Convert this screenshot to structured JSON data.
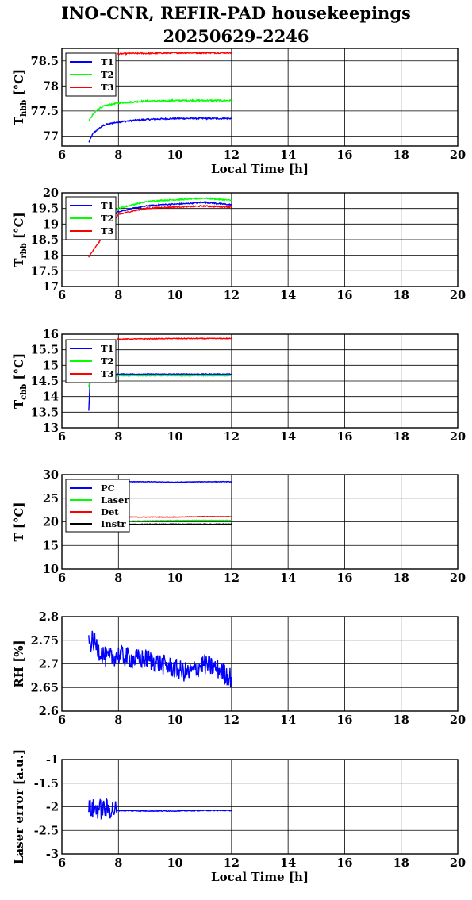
{
  "title": {
    "line1": "INO-CNR, REFIR-PAD housekeepings",
    "line2": "20250629-2246"
  },
  "colors": {
    "blue": "#0000ff",
    "green": "#00ff00",
    "red": "#ff0000",
    "black": "#000000",
    "grid": "#000000"
  },
  "chart_data": [
    {
      "type": "line",
      "ylabel_main": "T",
      "ylabel_sub": "hbb",
      "ylabel_unit": " [°C]",
      "xlabel": "Local Time [h]",
      "xlim": [
        6,
        20
      ],
      "ylim": [
        76.8,
        78.75
      ],
      "xticks": [
        6,
        8,
        10,
        12,
        14,
        16,
        18,
        20
      ],
      "yticks": [
        77,
        77.5,
        78,
        78.5
      ],
      "ytick_labels": [
        "77",
        "77.5",
        "78",
        "78.5"
      ],
      "grid": true,
      "legend_position": "top-left",
      "series": [
        {
          "name": "T1",
          "color": "#0000ff",
          "x": [
            6.95,
            7.1,
            7.3,
            7.5,
            7.8,
            8.0,
            8.5,
            9.0,
            9.5,
            10.0,
            10.5,
            11.0,
            11.5,
            12.0
          ],
          "values": [
            76.87,
            77.05,
            77.15,
            77.22,
            77.26,
            77.28,
            77.31,
            77.33,
            77.34,
            77.35,
            77.35,
            77.35,
            77.35,
            77.35
          ],
          "noise": 0.015
        },
        {
          "name": "T2",
          "color": "#00ff00",
          "x": [
            6.95,
            7.1,
            7.3,
            7.5,
            7.8,
            8.0,
            8.5,
            9.0,
            9.5,
            10.0,
            10.5,
            11.0,
            11.5,
            12.0
          ],
          "values": [
            77.3,
            77.43,
            77.55,
            77.6,
            77.64,
            77.66,
            77.68,
            77.7,
            77.7,
            77.71,
            77.71,
            77.71,
            77.71,
            77.71
          ],
          "noise": 0.015
        },
        {
          "name": "T3",
          "color": "#ff0000",
          "x": [
            7.95,
            8.5,
            9.0,
            10.0,
            11.0,
            12.0
          ],
          "values": [
            78.64,
            78.65,
            78.65,
            78.66,
            78.66,
            78.66
          ],
          "noise": 0.012
        }
      ]
    },
    {
      "type": "line",
      "ylabel_main": "T",
      "ylabel_sub": "rbb",
      "ylabel_unit": " [°C]",
      "xlabel": "",
      "xlim": [
        6,
        20
      ],
      "ylim": [
        17,
        20
      ],
      "xticks": [
        6,
        8,
        10,
        12,
        14,
        16,
        18,
        20
      ],
      "yticks": [
        17,
        17.5,
        18,
        18.5,
        19,
        19.5,
        20
      ],
      "ytick_labels": [
        "17",
        "17.5",
        "18",
        "18.5",
        "19",
        "19.5",
        "20"
      ],
      "grid": true,
      "legend_position": "top-left",
      "series": [
        {
          "name": "T1",
          "color": "#0000ff",
          "x": [
            6.95,
            8.0,
            8.5,
            9.0,
            9.5,
            10.0,
            10.5,
            11.0,
            11.5,
            12.0
          ],
          "values": [
            18.7,
            19.4,
            19.5,
            19.58,
            19.62,
            19.64,
            19.66,
            19.7,
            19.66,
            19.62
          ],
          "noise": 0.02
        },
        {
          "name": "T2",
          "color": "#00ff00",
          "x": [
            6.95,
            8.0,
            8.5,
            9.0,
            9.5,
            10.0,
            10.5,
            11.0,
            11.5,
            12.0
          ],
          "values": [
            18.9,
            19.5,
            19.62,
            19.72,
            19.76,
            19.78,
            19.8,
            19.83,
            19.8,
            19.76
          ],
          "noise": 0.02
        },
        {
          "name": "T3",
          "color": "#ff0000",
          "x": [
            6.95,
            8.0,
            8.5,
            9.0,
            9.5,
            10.0,
            10.5,
            11.0,
            11.5,
            12.0
          ],
          "values": [
            17.95,
            19.3,
            19.42,
            19.5,
            19.53,
            19.55,
            19.56,
            19.58,
            19.56,
            19.55
          ],
          "noise": 0.02
        }
      ]
    },
    {
      "type": "line",
      "ylabel_main": "T",
      "ylabel_sub": "cbb",
      "ylabel_unit": " [°C]",
      "xlabel": "",
      "xlim": [
        6,
        20
      ],
      "ylim": [
        13,
        16
      ],
      "xticks": [
        6,
        8,
        10,
        12,
        14,
        16,
        18,
        20
      ],
      "yticks": [
        13,
        13.5,
        14,
        14.5,
        15,
        15.5,
        16
      ],
      "ytick_labels": [
        "13",
        "13.5",
        "14",
        "14.5",
        "15",
        "15.5",
        "16"
      ],
      "grid": true,
      "legend_position": "top-left",
      "series": [
        {
          "name": "T1",
          "color": "#0000ff",
          "x": [
            6.95,
            7.0,
            8.0,
            9.0,
            10.0,
            11.0,
            12.0
          ],
          "values": [
            13.55,
            14.55,
            14.72,
            14.72,
            14.72,
            14.72,
            14.72
          ],
          "noise": 0.012
        },
        {
          "name": "T2",
          "color": "#00ff00",
          "x": [
            6.95,
            7.0,
            8.0,
            9.0,
            10.0,
            11.0,
            12.0
          ],
          "values": [
            14.3,
            14.6,
            14.67,
            14.67,
            14.67,
            14.67,
            14.67
          ],
          "noise": 0.012
        },
        {
          "name": "T3",
          "color": "#ff0000",
          "x": [
            7.95,
            9.0,
            10.0,
            11.0,
            12.0
          ],
          "values": [
            15.84,
            15.85,
            15.86,
            15.86,
            15.86
          ],
          "noise": 0.012
        }
      ]
    },
    {
      "type": "line",
      "ylabel_main": "T [°C]",
      "ylabel_sub": "",
      "ylabel_unit": "",
      "xlabel": "",
      "xlim": [
        6,
        20
      ],
      "ylim": [
        10,
        30
      ],
      "xticks": [
        6,
        8,
        10,
        12,
        14,
        16,
        18,
        20
      ],
      "yticks": [
        10,
        15,
        20,
        25,
        30
      ],
      "ytick_labels": [
        "10",
        "15",
        "20",
        "25",
        "30"
      ],
      "grid": true,
      "legend_position": "top-left",
      "series": [
        {
          "name": "PC",
          "color": "#0000ff",
          "x": [
            7.95,
            9.0,
            10.0,
            11.0,
            12.0
          ],
          "values": [
            28.5,
            28.5,
            28.4,
            28.5,
            28.5
          ],
          "noise": 0.06
        },
        {
          "name": "Laser",
          "color": "#00ff00",
          "x": [
            7.95,
            9.0,
            10.0,
            11.0,
            12.0
          ],
          "values": [
            20.1,
            20.2,
            20.3,
            20.3,
            20.3
          ],
          "noise": 0.06
        },
        {
          "name": "Det",
          "color": "#ff0000",
          "x": [
            7.95,
            9.0,
            10.0,
            11.0,
            12.0
          ],
          "values": [
            21.0,
            21.0,
            21.0,
            21.1,
            21.1
          ],
          "noise": 0.05
        },
        {
          "name": "Instr",
          "color": "#000000",
          "x": [
            7.95,
            9.0,
            10.0,
            11.0,
            12.0
          ],
          "values": [
            19.4,
            19.5,
            19.5,
            19.5,
            19.5
          ],
          "noise": 0.06
        }
      ]
    },
    {
      "type": "line",
      "ylabel_main": "RH [%]",
      "ylabel_sub": "",
      "ylabel_unit": "",
      "xlabel": "",
      "xlim": [
        6,
        20
      ],
      "ylim": [
        2.6,
        2.8
      ],
      "xticks": [
        6,
        8,
        10,
        12,
        14,
        16,
        18,
        20
      ],
      "yticks": [
        2.6,
        2.65,
        2.7,
        2.75,
        2.8
      ],
      "ytick_labels": [
        "2.6",
        "2.65",
        "2.7",
        "2.75",
        "2.8"
      ],
      "grid": true,
      "legend_position": "none",
      "series": [
        {
          "name": "",
          "color": "#0000ff",
          "x": [
            6.95,
            7.1,
            7.3,
            7.6,
            8.0,
            8.5,
            9.0,
            9.5,
            10.0,
            10.5,
            11.0,
            11.5,
            12.0
          ],
          "values": [
            2.74,
            2.75,
            2.73,
            2.71,
            2.72,
            2.71,
            2.71,
            2.7,
            2.69,
            2.68,
            2.7,
            2.69,
            2.67
          ],
          "noise": 0.022
        }
      ]
    },
    {
      "type": "line",
      "ylabel_main": "Laser error [a.u.]",
      "ylabel_sub": "",
      "ylabel_unit": "",
      "xlabel": "Local Time [h]",
      "xlim": [
        6,
        20
      ],
      "ylim": [
        -3,
        -1
      ],
      "xticks": [
        6,
        8,
        10,
        12,
        14,
        16,
        18,
        20
      ],
      "yticks": [
        -3,
        -2.5,
        -2,
        -1.5,
        -1
      ],
      "ytick_labels": [
        "-3",
        "-2.5",
        "-2",
        "-1.5",
        "-1"
      ],
      "grid": true,
      "legend_position": "none",
      "series": [
        {
          "name": "",
          "color": "#0000ff",
          "x": [
            6.95,
            7.2,
            7.5,
            7.8,
            7.95
          ],
          "values": [
            -2.05,
            -2.05,
            -2.05,
            -2.05,
            -2.08
          ],
          "noise": 0.22
        },
        {
          "name": "",
          "color": "#0000ff",
          "x": [
            7.95,
            9.0,
            10.0,
            11.0,
            12.0
          ],
          "values": [
            -2.08,
            -2.09,
            -2.09,
            -2.08,
            -2.08
          ],
          "noise": 0.008
        }
      ]
    }
  ]
}
